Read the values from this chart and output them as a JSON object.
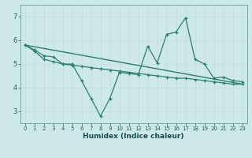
{
  "xlabel": "Humidex (Indice chaleur)",
  "bg_color": "#cce8e8",
  "grid_color": "#b8d8d8",
  "line_color": "#2e7d6e",
  "xlim": [
    -0.5,
    23.5
  ],
  "ylim": [
    2.5,
    7.5
  ],
  "yticks": [
    3,
    4,
    5,
    6,
    7
  ],
  "xticks": [
    0,
    1,
    2,
    3,
    4,
    5,
    6,
    7,
    8,
    9,
    10,
    11,
    12,
    13,
    14,
    15,
    16,
    17,
    18,
    19,
    20,
    21,
    22,
    23
  ],
  "line1_x": [
    0,
    1,
    2,
    3,
    4,
    5,
    6,
    7,
    8,
    9,
    10,
    11,
    12,
    13,
    14,
    15,
    16,
    17,
    18,
    19,
    20,
    21,
    22,
    23
  ],
  "line1_y": [
    5.8,
    5.6,
    5.35,
    5.3,
    5.0,
    5.0,
    4.3,
    3.55,
    2.8,
    3.55,
    4.65,
    4.6,
    4.55,
    5.75,
    5.05,
    6.25,
    6.35,
    6.95,
    5.2,
    5.0,
    4.4,
    4.45,
    4.3,
    4.25
  ],
  "line2_x": [
    0,
    1,
    2,
    3,
    4,
    5,
    6,
    7,
    8,
    9,
    10,
    11,
    12,
    13,
    14,
    15,
    16,
    17,
    18,
    19,
    20,
    21,
    22,
    23
  ],
  "line2_y": [
    5.8,
    5.55,
    5.2,
    5.1,
    5.0,
    4.95,
    4.9,
    4.85,
    4.8,
    4.75,
    4.7,
    4.65,
    4.6,
    4.55,
    4.5,
    4.45,
    4.4,
    4.4,
    4.35,
    4.3,
    4.25,
    4.2,
    4.15,
    4.15
  ],
  "line3_x": [
    0,
    23
  ],
  "line3_y": [
    5.8,
    4.15
  ],
  "figsize": [
    3.2,
    2.0
  ],
  "dpi": 100
}
